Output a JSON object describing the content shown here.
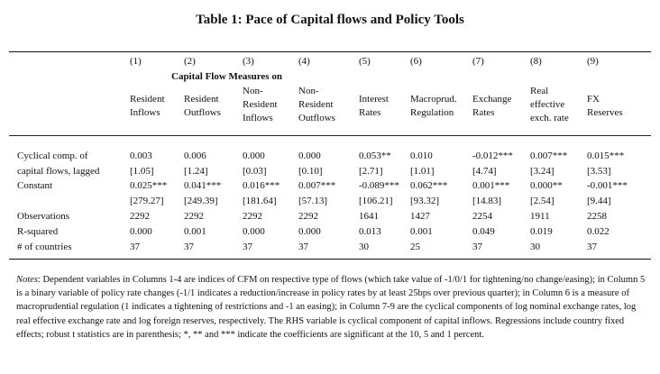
{
  "title": "Table 1: Pace of Capital flows and Policy Tools",
  "column_numbers": [
    "(1)",
    "(2)",
    "(3)",
    "(4)",
    "(5)",
    "(6)",
    "(7)",
    "(8)",
    "(9)"
  ],
  "group_header": "Capital Flow Measures on",
  "column_headers": [
    "Resident\nInflows",
    "Resident\nOutflows",
    "Non-\nResident\nInflows",
    "Non-\nResident\nOutflows",
    "Interest\nRates",
    "Macroprud.\nRegulation",
    "Exchange\nRates",
    "Real\neffective\nexch. rate",
    "FX\nReserves"
  ],
  "rows": [
    {
      "label": "Cyclical comp. of",
      "values": [
        "0.003",
        "0.006",
        "0.000",
        "0.000",
        "0.053**",
        "0.010",
        "-0.012***",
        "0.007***",
        "0.015***"
      ]
    },
    {
      "label": "capital flows, lagged",
      "values": [
        "[1.05]",
        "[1.24]",
        "[0.03]",
        "[0.10]",
        "[2.71]",
        "[1.01]",
        "[4.74]",
        "[3.24]",
        "[3.53]"
      ]
    },
    {
      "label": "Constant",
      "values": [
        "0.025***",
        "0.041***",
        "0.016***",
        "0.007***",
        "-0.089***",
        "0.062***",
        "0.001***",
        "0.000**",
        "-0.001***"
      ]
    },
    {
      "label": "",
      "values": [
        "[279.27]",
        "[249.39]",
        "[181.64]",
        "[57.13]",
        "[106.21]",
        "[93.32]",
        "[14.83]",
        "[2.54]",
        "[9.44]"
      ]
    },
    {
      "label": "Observations",
      "values": [
        "2292",
        "2292",
        "2292",
        "2292",
        "1641",
        "1427",
        "2254",
        "1911",
        "2258"
      ]
    },
    {
      "label": "R-squared",
      "values": [
        "0.000",
        "0.001",
        "0.000",
        "0.000",
        "0.013",
        "0.001",
        "0.049",
        "0.019",
        "0.022"
      ]
    },
    {
      "label": "# of countries",
      "values": [
        "37",
        "37",
        "37",
        "37",
        "30",
        "25",
        "37",
        "30",
        "37"
      ]
    }
  ],
  "notes": {
    "label": "Notes",
    "text": ": Dependent variables in Columns 1-4 are indices of CFM on respective type of flows (which take value of -1/0/1 for tightening/no change/easing); in Column 5 is a binary variable of policy rate changes (-1/1 indicates a reduction/increase in policy rates by at least 25bps over previous quarter); in Column 6 is a measure of macroprudential regulation (1 indicates a tightening of restrictions and -1 an easing); in Column 7-9 are the cyclical components of log nominal exchange rates, log real effective exchange rate and log foreign reserves, respectively. The RHS variable is cyclical component of capital inflows. Regressions include country fixed effects; robust t statistics are in parenthesis; *, ** and *** indicate the coefficients are significant at the 10, 5 and 1 percent."
  }
}
